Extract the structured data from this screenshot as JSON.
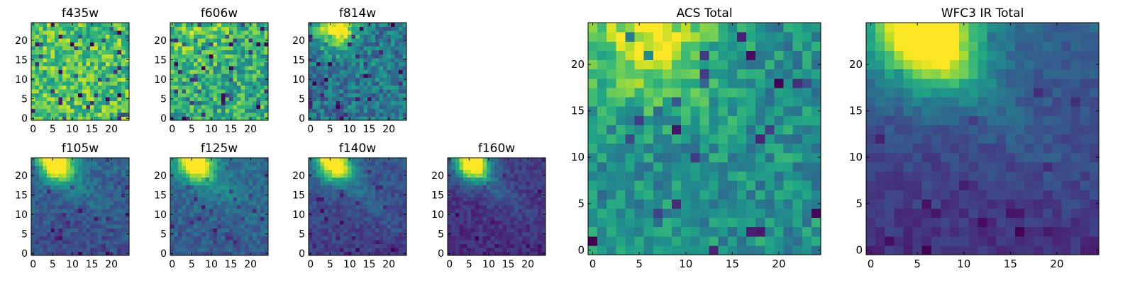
{
  "chart_data": [
    {
      "type": "heatmap",
      "title": "f435w",
      "x_ticks": [
        "0",
        "5",
        "10",
        "15",
        "20"
      ],
      "y_ticks": [
        "0",
        "5",
        "10",
        "15",
        "20"
      ],
      "xlim": [
        0,
        24
      ],
      "ylim": [
        0,
        24
      ],
      "grid_size": [
        25,
        25
      ],
      "colormap": "viridis",
      "pattern": "uniform high-intensity noise with scattered dark pixels"
    },
    {
      "type": "heatmap",
      "title": "f606w",
      "x_ticks": [
        "0",
        "5",
        "10",
        "15",
        "20"
      ],
      "y_ticks": [
        "0",
        "5",
        "10",
        "15",
        "20"
      ],
      "xlim": [
        0,
        24
      ],
      "ylim": [
        0,
        24
      ],
      "grid_size": [
        25,
        25
      ],
      "colormap": "viridis",
      "pattern": "bright noise, slightly brighter toward top-left"
    },
    {
      "type": "heatmap",
      "title": "f814w",
      "x_ticks": [
        "0",
        "5",
        "10",
        "15",
        "20"
      ],
      "y_ticks": [
        "0",
        "5",
        "10",
        "15",
        "20"
      ],
      "xlim": [
        0,
        24
      ],
      "ylim": [
        0,
        24
      ],
      "grid_size": [
        25,
        25
      ],
      "colormap": "viridis",
      "pattern": "bright source near top-left (x~6, y~23) on noisy mid background"
    },
    {
      "type": "heatmap",
      "title": "f105w",
      "x_ticks": [
        "0",
        "5",
        "10",
        "15",
        "20"
      ],
      "y_ticks": [
        "0",
        "5",
        "10",
        "15",
        "20"
      ],
      "xlim": [
        0,
        24
      ],
      "ylim": [
        0,
        24
      ],
      "grid_size": [
        25,
        25
      ],
      "colormap": "viridis",
      "pattern": "bright source near top-left with diagonal tail, dark lower background"
    },
    {
      "type": "heatmap",
      "title": "f125w",
      "x_ticks": [
        "0",
        "5",
        "10",
        "15",
        "20"
      ],
      "y_ticks": [
        "0",
        "5",
        "10",
        "15",
        "20"
      ],
      "xlim": [
        0,
        24
      ],
      "ylim": [
        0,
        24
      ],
      "grid_size": [
        25,
        25
      ],
      "colormap": "viridis",
      "pattern": "bright source near top-left with diagonal tail"
    },
    {
      "type": "heatmap",
      "title": "f140w",
      "x_ticks": [
        "0",
        "5",
        "10",
        "15",
        "20"
      ],
      "y_ticks": [
        "0",
        "5",
        "10",
        "15",
        "20"
      ],
      "xlim": [
        0,
        24
      ],
      "ylim": [
        0,
        24
      ],
      "grid_size": [
        25,
        25
      ],
      "colormap": "viridis",
      "pattern": "bright source near top-left with diagonal tail"
    },
    {
      "type": "heatmap",
      "title": "f160w",
      "x_ticks": [
        "0",
        "5",
        "10",
        "15",
        "20"
      ],
      "y_ticks": [
        "0",
        "5",
        "10",
        "15",
        "20"
      ],
      "xlim": [
        0,
        24
      ],
      "ylim": [
        0,
        24
      ],
      "grid_size": [
        25,
        25
      ],
      "colormap": "viridis",
      "pattern": "bright source near top-left with diagonal tail, dark background"
    },
    {
      "type": "heatmap",
      "title": "ACS Total",
      "x_ticks": [
        "0",
        "5",
        "10",
        "15",
        "20"
      ],
      "y_ticks": [
        "0",
        "5",
        "10",
        "15",
        "20"
      ],
      "xlim": [
        0,
        24
      ],
      "ylim": [
        0,
        24
      ],
      "grid_size": [
        25,
        25
      ],
      "colormap": "viridis",
      "pattern": "bright region upper-left, green noisy background with dark pixels"
    },
    {
      "type": "heatmap",
      "title": "WFC3 IR Total",
      "x_ticks": [
        "0",
        "5",
        "10",
        "15",
        "20"
      ],
      "y_ticks": [
        "0",
        "5",
        "10",
        "15",
        "20"
      ],
      "xlim": [
        0,
        24
      ],
      "ylim": [
        0,
        24
      ],
      "grid_size": [
        25,
        25
      ],
      "colormap": "viridis",
      "pattern": "bright source top-left (x~6, y~23), fading toward dark lower-right"
    }
  ]
}
